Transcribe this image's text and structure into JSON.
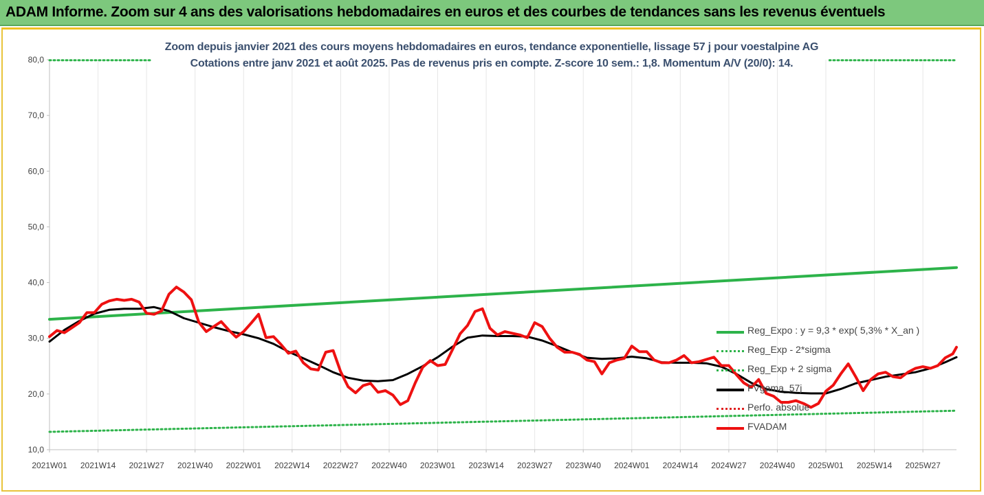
{
  "banner": {
    "title": "ADAM Informe. Zoom sur 4 ans des valorisations hebdomadaires en euros et des courbes de tendances sans les revenus éventuels"
  },
  "colors": {
    "banner_bg": "#7dc87d",
    "frame_border": "#e8c33a",
    "title_text": "#3a4f6e",
    "reg_expo": "#2db34a",
    "sigma_dotted": "#2db34a",
    "fvgama": "#000000",
    "perfo": "#e02020",
    "fvadam": "#ee1111"
  },
  "chart_data": {
    "type": "line",
    "title": "Zoom depuis janvier 2021 des cours moyens hebdomadaires en euros, tendance exponentielle, lissage 57 j pour voestalpine AG",
    "subtitle": "Cotations entre janv 2021 et août 2025. Pas de revenus pris en compte. Z-score 10 sem.: 1,8. Momentum A/V (20/0): 14.",
    "xlabel": "",
    "ylabel": "",
    "ylim": [
      10,
      80
    ],
    "yticks": [
      "10,0",
      "20,0",
      "30,0",
      "40,0",
      "50,0",
      "60,0",
      "70,0",
      "80,0"
    ],
    "x_range_weeks": [
      0,
      243
    ],
    "x_tick_labels": [
      "2021W01",
      "2021W14",
      "2021W27",
      "2021W40",
      "2022W01",
      "2022W14",
      "2022W27",
      "2022W40",
      "2023W01",
      "2023W14",
      "2023W27",
      "2023W40",
      "2024W01",
      "2024W14",
      "2024W27",
      "2024W40",
      "2025W01",
      "2025W14",
      "2025W27"
    ],
    "x_tick_weeks": [
      0,
      13,
      26,
      39,
      52,
      65,
      78,
      91,
      104,
      117,
      130,
      143,
      156,
      169,
      182,
      195,
      208,
      221,
      234
    ],
    "grid": "vertical",
    "legend_position": "right",
    "series": [
      {
        "name": "Reg_Expo : y = 9,3 * exp( 5,3% * X_an )",
        "style": "solid",
        "x": [
          0,
          243
        ],
        "values": [
          33.4,
          42.7
        ]
      },
      {
        "name": "Reg_Exp - 2*sigma",
        "style": "dotted",
        "x": [
          0,
          243
        ],
        "values": [
          13.2,
          17.0
        ]
      },
      {
        "name": "Reg_Exp + 2 sigma",
        "style": "dotted",
        "x": [
          0,
          243
        ],
        "values": [
          79.9,
          79.9
        ]
      },
      {
        "name": "FVgama_57j",
        "style": "solid",
        "x": [
          0,
          4,
          8,
          12,
          16,
          20,
          24,
          28,
          32,
          36,
          40,
          44,
          48,
          52,
          56,
          60,
          64,
          68,
          72,
          76,
          80,
          84,
          88,
          92,
          96,
          100,
          104,
          108,
          112,
          116,
          120,
          124,
          128,
          132,
          136,
          140,
          144,
          148,
          152,
          156,
          160,
          164,
          168,
          172,
          176,
          180,
          184,
          188,
          192,
          196,
          200,
          204,
          208,
          212,
          216,
          220,
          224,
          228,
          232,
          236,
          240,
          243
        ],
        "values": [
          29.4,
          31.5,
          33.1,
          34.4,
          35.1,
          35.3,
          35.3,
          35.6,
          34.9,
          33.6,
          32.8,
          32.0,
          31.3,
          30.7,
          30.0,
          29.0,
          27.6,
          26.4,
          25.2,
          23.9,
          22.9,
          22.4,
          22.3,
          22.5,
          23.6,
          25.0,
          26.6,
          28.5,
          30.1,
          30.5,
          30.4,
          30.4,
          30.3,
          29.6,
          28.6,
          27.5,
          26.5,
          26.3,
          26.4,
          26.7,
          26.4,
          25.7,
          25.6,
          25.6,
          25.5,
          24.9,
          23.6,
          22.0,
          20.9,
          20.4,
          20.2,
          20.1,
          20.1,
          20.9,
          21.9,
          22.5,
          23.1,
          23.5,
          23.9,
          24.6,
          25.7,
          26.6
        ]
      },
      {
        "name": "Perfo. absolue",
        "style": "dotted",
        "x": [],
        "values": []
      },
      {
        "name": "FVADAM",
        "style": "solid",
        "x": [
          0,
          2,
          4,
          6,
          8,
          10,
          12,
          14,
          16,
          18,
          20,
          22,
          24,
          26,
          28,
          30,
          32,
          34,
          36,
          38,
          40,
          42,
          44,
          46,
          48,
          50,
          52,
          54,
          56,
          58,
          60,
          62,
          64,
          66,
          68,
          70,
          72,
          74,
          76,
          78,
          80,
          82,
          84,
          86,
          88,
          90,
          92,
          94,
          96,
          98,
          100,
          102,
          104,
          106,
          108,
          110,
          112,
          114,
          116,
          118,
          120,
          122,
          124,
          126,
          128,
          130,
          132,
          134,
          136,
          138,
          140,
          142,
          144,
          146,
          148,
          150,
          152,
          154,
          156,
          158,
          160,
          162,
          164,
          166,
          168,
          170,
          172,
          174,
          176,
          178,
          180,
          182,
          184,
          186,
          188,
          190,
          192,
          194,
          196,
          198,
          200,
          202,
          204,
          206,
          208,
          210,
          212,
          214,
          216,
          218,
          220,
          222,
          224,
          226,
          228,
          230,
          232,
          234,
          236,
          238,
          240,
          242,
          243
        ],
        "values": [
          30.3,
          31.4,
          31.0,
          31.9,
          32.8,
          34.6,
          34.6,
          36.1,
          36.7,
          37.0,
          36.8,
          37.0,
          36.5,
          34.5,
          34.3,
          34.9,
          37.9,
          39.2,
          38.3,
          36.9,
          32.9,
          31.2,
          32.1,
          33.0,
          31.5,
          30.2,
          31.2,
          32.7,
          34.3,
          30.1,
          30.3,
          28.9,
          27.3,
          27.7,
          25.6,
          24.5,
          24.3,
          27.5,
          27.8,
          24.0,
          21.3,
          20.2,
          21.5,
          21.9,
          20.3,
          20.6,
          19.8,
          18.1,
          18.8,
          22.0,
          24.8,
          26.0,
          25.1,
          25.3,
          28.0,
          30.8,
          32.3,
          34.8,
          35.3,
          31.8,
          30.6,
          31.2,
          30.9,
          30.6,
          30.1,
          32.8,
          32.1,
          30.0,
          28.4,
          27.5,
          27.5,
          27.1,
          26.1,
          25.8,
          23.6,
          25.6,
          26.1,
          26.4,
          28.6,
          27.6,
          27.6,
          26.1,
          25.6,
          25.6,
          26.1,
          26.9,
          25.6,
          25.8,
          26.2,
          26.6,
          25.1,
          25.1,
          23.5,
          22.0,
          21.2,
          22.6,
          20.1,
          19.6,
          18.5,
          18.5,
          18.8,
          18.3,
          17.6,
          18.3,
          20.5,
          21.6,
          23.6,
          25.4,
          23.1,
          20.6,
          22.6,
          23.6,
          23.9,
          23.1,
          22.9,
          23.9,
          24.6,
          24.9,
          24.6,
          25.1,
          26.5,
          27.2,
          28.4
        ]
      }
    ]
  },
  "legend": {
    "items": [
      {
        "label": "Reg_Expo : y = 9,3 * exp( 5,3% *  X_an )",
        "color": "#2db34a",
        "style": "solid"
      },
      {
        "label": "Reg_Exp - 2*sigma",
        "color": "#2db34a",
        "style": "dotted"
      },
      {
        "label": "Reg_Exp + 2 sigma",
        "color": "#2db34a",
        "style": "dotted"
      },
      {
        "label": "FVgama_57j",
        "color": "#000000",
        "style": "solid"
      },
      {
        "label": "Perfo. absolue",
        "color": "#e02020",
        "style": "dotted"
      },
      {
        "label": "FVADAM",
        "color": "#ee1111",
        "style": "solid"
      }
    ]
  }
}
